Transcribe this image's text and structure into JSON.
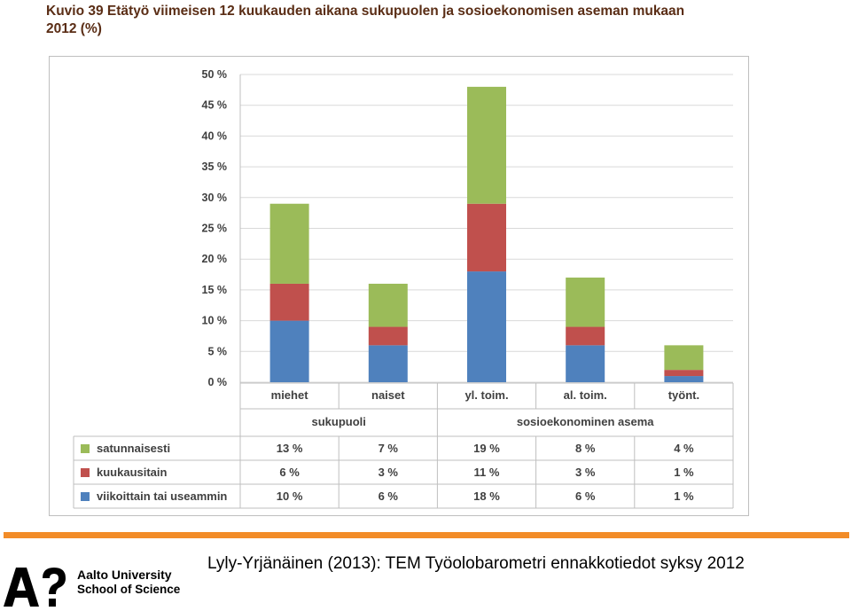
{
  "header": {
    "title_line1": "Kuvio 39 Etätyö viimeisen 12 kuukauden aikana sukupuolen ja sosioekonomisen aseman mukaan",
    "title_line2": "2012 (%)"
  },
  "colors": {
    "satunnaisesti": "#9bbb59",
    "kuukausitain": "#c0504d",
    "viikoittain": "#4f81bd",
    "grid": "#d9d9d9",
    "axis_text": "#404040",
    "accent_rule": "#f28c28"
  },
  "chart_data": {
    "type": "bar",
    "stacked": true,
    "categories": [
      "miehet",
      "naiset",
      "yl. toim.",
      "al. toim.",
      "työnt."
    ],
    "groups": [
      {
        "label": "sukupuoli",
        "categories": [
          "miehet",
          "naiset"
        ]
      },
      {
        "label": "sosioekonominen asema",
        "categories": [
          "yl. toim.",
          "al. toim.",
          "työnt."
        ]
      }
    ],
    "series": [
      {
        "name": "viikoittain tai useammin",
        "color": "#4f81bd",
        "values": [
          10,
          6,
          18,
          6,
          1
        ],
        "labels": [
          "10 %",
          "6 %",
          "18 %",
          "6 %",
          "1 %"
        ]
      },
      {
        "name": "kuukausitain",
        "color": "#c0504d",
        "values": [
          6,
          3,
          11,
          3,
          1
        ],
        "labels": [
          "6 %",
          "3 %",
          "11 %",
          "3 %",
          "1 %"
        ]
      },
      {
        "name": "satunnaisesti",
        "color": "#9bbb59",
        "values": [
          13,
          7,
          19,
          8,
          4
        ],
        "labels": [
          "13 %",
          "7 %",
          "19 %",
          "8 %",
          "4 %"
        ]
      }
    ],
    "table_order": [
      "satunnaisesti",
      "kuukausitain",
      "viikoittain tai useammin"
    ],
    "ylim": [
      0,
      50
    ],
    "yticks": [
      "0 %",
      "5 %",
      "10 %",
      "15 %",
      "20 %",
      "25 %",
      "30 %",
      "35 %",
      "40 %",
      "45 %",
      "50 %"
    ],
    "grid": true,
    "legend": "data-table"
  },
  "footer": {
    "logo_text": "A?",
    "university": "Aalto University",
    "school": "School of Science",
    "citation": "Lyly-Yrjänäinen (2013): TEM Työolobarometri ennakkotiedot syksy 2012"
  }
}
